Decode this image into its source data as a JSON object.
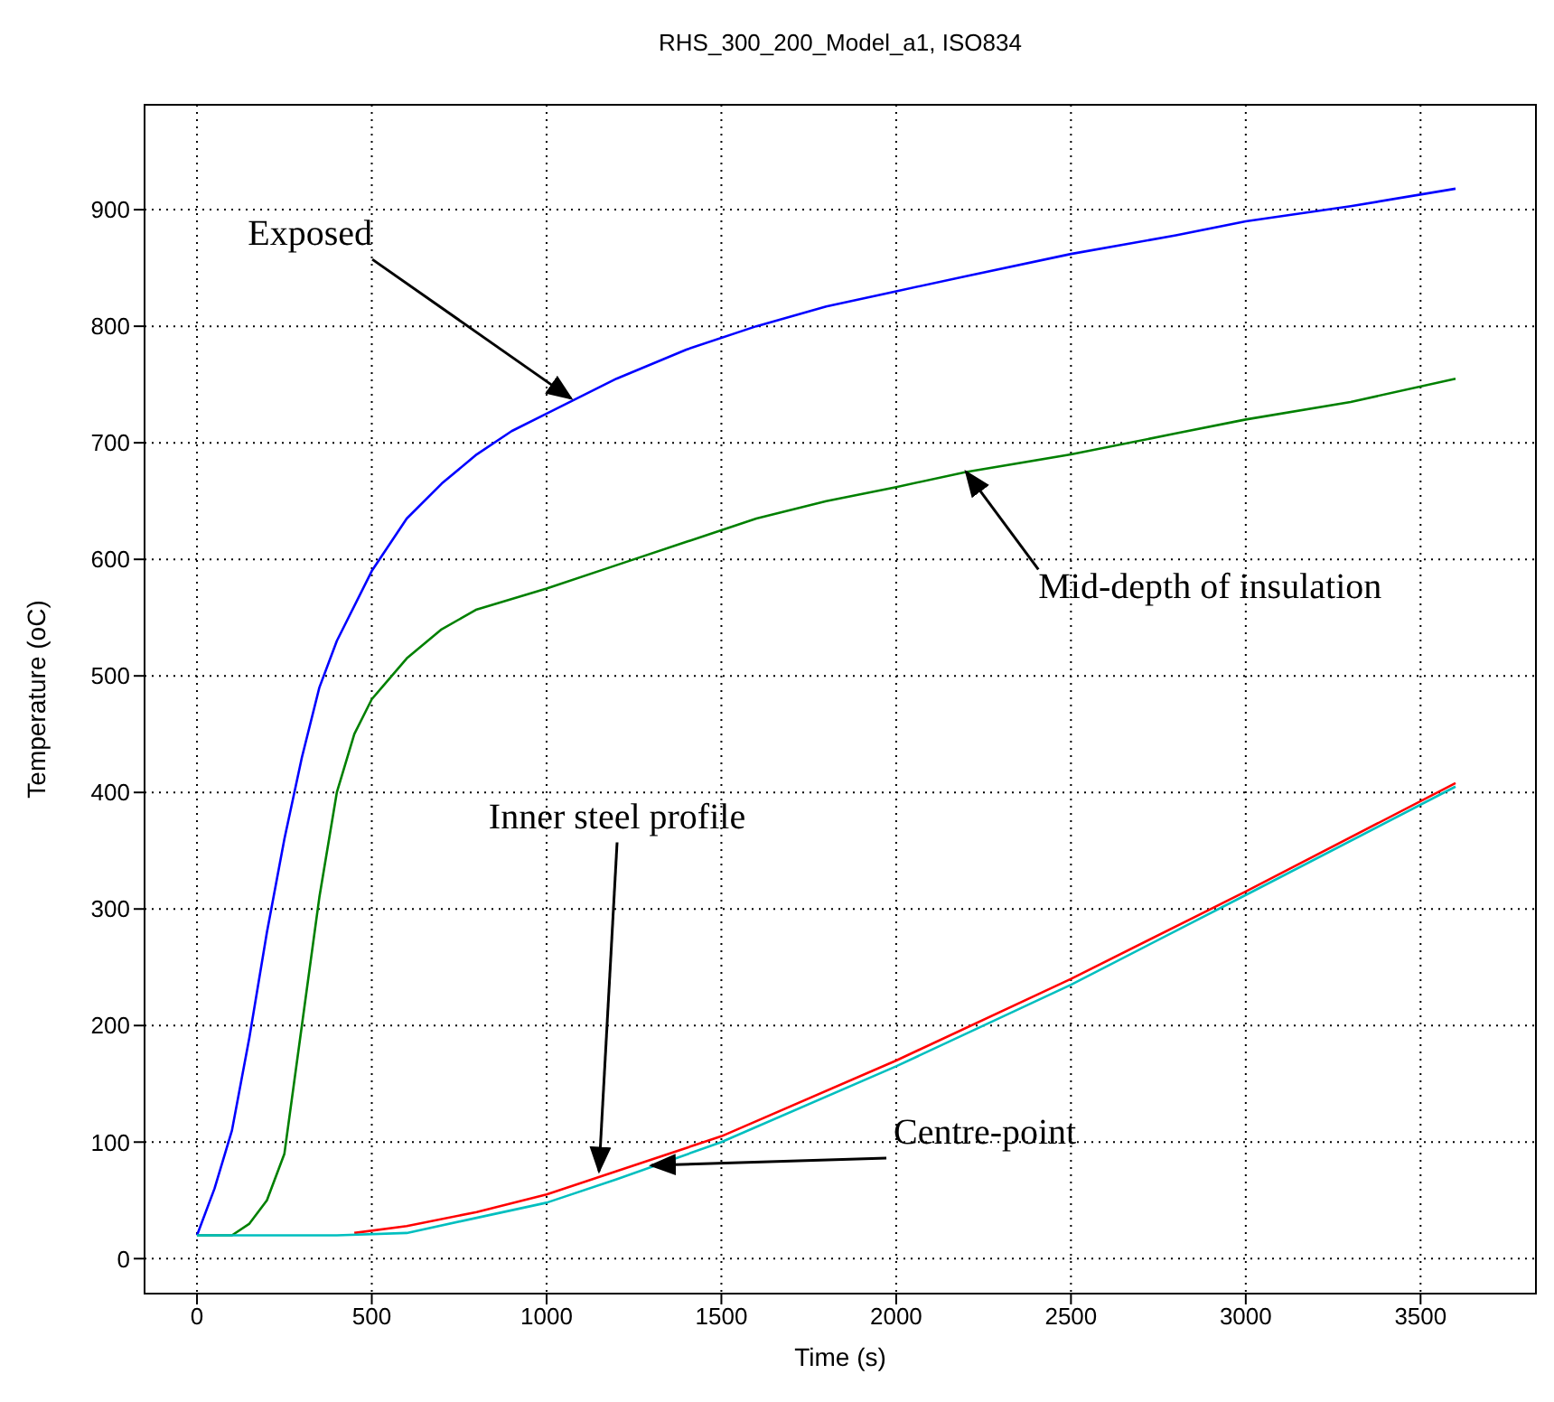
{
  "chart_data": {
    "type": "line",
    "title": "RHS_300_200_Model_a1, ISO834",
    "xlabel": "Time (s)",
    "ylabel": "Temperature (oC)",
    "xlim": [
      -150,
      3830
    ],
    "xticks": [
      0,
      500,
      1000,
      1500,
      2000,
      2500,
      3000,
      3500
    ],
    "ylim": [
      -30,
      990
    ],
    "yticks": [
      0,
      100,
      200,
      300,
      400,
      500,
      600,
      700,
      800,
      900
    ],
    "grid": true,
    "legend": false,
    "marker": "none",
    "line_style": "solid",
    "series": [
      {
        "color": "#0000ff",
        "x": [
          0,
          50,
          100,
          150,
          200,
          250,
          300,
          350,
          400,
          500,
          600,
          700,
          800,
          900,
          1000,
          1200,
          1400,
          1600,
          1800,
          2000,
          2200,
          2500,
          2800,
          3000,
          3300,
          3600
        ],
        "values": [
          20,
          60,
          110,
          190,
          280,
          360,
          430,
          490,
          530,
          590,
          635,
          665,
          690,
          710,
          725,
          755,
          780,
          800,
          817,
          830,
          843,
          862,
          878,
          890,
          903,
          918
        ]
      },
      {
        "color": "#008000",
        "x": [
          0,
          100,
          150,
          200,
          250,
          300,
          350,
          400,
          450,
          500,
          600,
          700,
          800,
          1000,
          1200,
          1400,
          1600,
          1800,
          2000,
          2200,
          2500,
          2800,
          3000,
          3300,
          3600
        ],
        "values": [
          20,
          20,
          30,
          50,
          90,
          200,
          310,
          400,
          450,
          480,
          515,
          540,
          557,
          575,
          595,
          615,
          635,
          650,
          662,
          675,
          690,
          708,
          720,
          735,
          755
        ]
      },
      {
        "color": "#ff0000",
        "x": [
          450,
          600,
          800,
          1000,
          1200,
          1500,
          2000,
          2500,
          3000,
          3600
        ],
        "values": [
          22,
          28,
          40,
          55,
          75,
          105,
          170,
          240,
          315,
          408
        ]
      },
      {
        "color": "#00bfbf",
        "x": [
          0,
          400,
          600,
          800,
          1000,
          1200,
          1500,
          2000,
          2500,
          3000,
          3600
        ],
        "values": [
          20,
          20,
          22,
          35,
          48,
          68,
          100,
          165,
          235,
          312,
          405
        ]
      }
    ],
    "annotations": [
      {
        "text": "Exposed",
        "x": 1070,
        "y": 738
      },
      {
        "text": "Mid-depth of insulation",
        "x": 2200,
        "y": 675
      },
      {
        "text": "Inner steel profile",
        "x": 1150,
        "y": 75
      },
      {
        "text": "Centre-point",
        "x": 1300,
        "y": 80
      }
    ]
  }
}
